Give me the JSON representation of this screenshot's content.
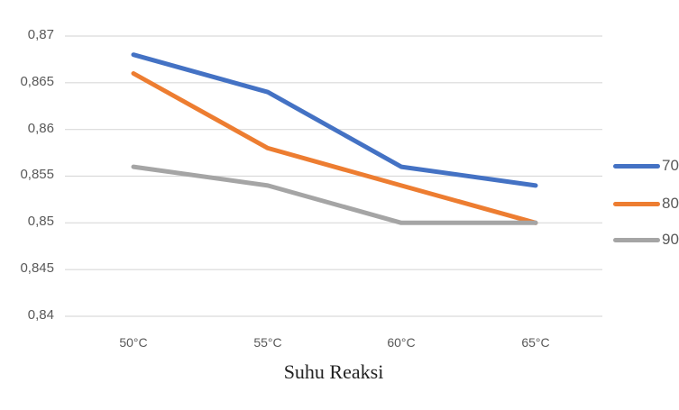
{
  "chart_data": {
    "type": "line",
    "title": "",
    "xlabel": "Suhu Reaksi",
    "ylabel": "",
    "categories": [
      "50°C",
      "55°C",
      "60°C",
      "65°C"
    ],
    "y_ticks": [
      "0,87",
      "0,865",
      "0,86",
      "0,855",
      "0,85",
      "0,845",
      "0,84"
    ],
    "ylim": [
      0.84,
      0.87
    ],
    "grid": true,
    "legend_position": "right",
    "series": [
      {
        "name": "70",
        "color": "#4472C4",
        "values": [
          0.868,
          0.864,
          0.856,
          0.854
        ]
      },
      {
        "name": "80",
        "color": "#ED7D31",
        "values": [
          0.866,
          0.858,
          0.854,
          0.85
        ]
      },
      {
        "name": "90",
        "color": "#A5A5A5",
        "values": [
          0.856,
          0.854,
          0.85,
          0.85
        ]
      }
    ]
  },
  "legend": [
    {
      "label": "70",
      "color": "#4472C4"
    },
    {
      "label": "80",
      "color": "#ED7D31"
    },
    {
      "label": "90",
      "color": "#A5A5A5"
    }
  ]
}
